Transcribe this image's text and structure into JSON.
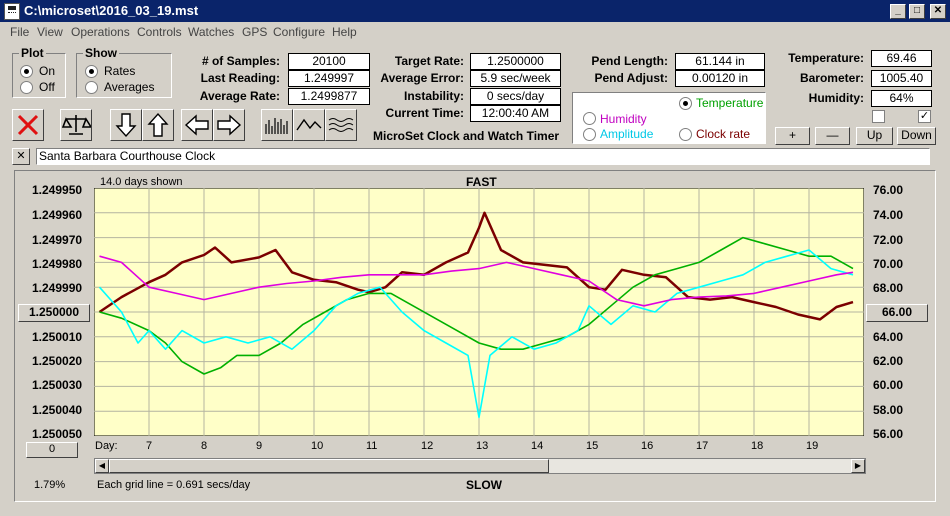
{
  "window": {
    "title": "C:\\microset\\2016_03_19.mst",
    "min": "_",
    "max": "□",
    "close": "✕"
  },
  "menu": [
    "File",
    "View",
    "Operations",
    "Controls",
    "Watches",
    "GPS",
    "Configure",
    "Help"
  ],
  "plot": {
    "legend": "Plot",
    "on": "On",
    "off": "Off",
    "selected": "On"
  },
  "show": {
    "legend": "Show",
    "rates": "Rates",
    "averages": "Averages",
    "selected": "Rates"
  },
  "stats": {
    "samples_label": "# of Samples:",
    "samples": "20100",
    "last_label": "Last Reading:",
    "last": "1.249997",
    "avg_label": "Average Rate:",
    "avg": "1.2499877"
  },
  "rates": {
    "target_label": "Target Rate:",
    "target": "1.2500000",
    "err_label": "Average Error:",
    "err": "5.9 sec/week",
    "instab_label": "Instability:",
    "instab": "0 secs/day",
    "time_label": "Current Time:",
    "time": "12:00:40 AM"
  },
  "app_name": "MicroSet Clock and Watch Timer",
  "pend": {
    "length_label": "Pend Length:",
    "length": "61.144 in",
    "adjust_label": "Pend Adjust:",
    "adjust": "0.00120 in"
  },
  "sensor_options": {
    "temperature": "Temperature",
    "humidity": "Humidity",
    "amplitude": "Amplitude",
    "clock_rate": "Clock rate",
    "selected": "Temperature"
  },
  "env": {
    "temp_label": "Temperature:",
    "temp": "69.46",
    "baro_label": "Barometer:",
    "baro": "1005.40",
    "hum_label": "Humidity:",
    "hum": "64%"
  },
  "scale_buttons": {
    "plus": "+",
    "minus": "—",
    "up": "Up",
    "down": "Down"
  },
  "clock_name": "Santa Barbara Courthouse Clock",
  "close_x": "✕",
  "chart_top": {
    "days_shown": "14.0 days shown",
    "fast": "FAST"
  },
  "chart_bottom": {
    "slow": "SLOW",
    "grid": "Each grid line = 0.691 secs/day",
    "percent": "1.79%",
    "left_btn": "0",
    "day_label": "Day:"
  },
  "left_mid_value": "1.250000",
  "right_mid_value": "66.00",
  "colors": {
    "plot_bg": "#ffffc8",
    "rate": "#7b0000",
    "temperature": "#00b000",
    "amplitude": "#00ffff",
    "humidity": "#e000e0"
  },
  "chart_data": {
    "type": "line",
    "x_label": "Day:",
    "x_ticks": [
      "7",
      "8",
      "9",
      "10",
      "11",
      "12",
      "13",
      "14",
      "15",
      "16",
      "17",
      "18",
      "19"
    ],
    "xlim": [
      6,
      20
    ],
    "y_left_ticks": [
      "1.249950",
      "1.249960",
      "1.249970",
      "1.249980",
      "1.249990",
      "1.250000",
      "1.250010",
      "1.250020",
      "1.250030",
      "1.250040",
      "1.250050"
    ],
    "ylim_left": [
      1.24995,
      1.25005
    ],
    "y_left_inverted": true,
    "y_right_ticks": [
      "76.00",
      "74.00",
      "72.00",
      "70.00",
      "68.00",
      "66.00",
      "64.00",
      "62.00",
      "60.00",
      "58.00",
      "56.00"
    ],
    "ylim_right": [
      56,
      76
    ],
    "series": [
      {
        "name": "Rate",
        "color": "#7b0000",
        "x": [
          6.1,
          6.5,
          7.0,
          7.3,
          7.6,
          8.0,
          8.2,
          8.5,
          9.0,
          9.3,
          9.6,
          10.0,
          10.4,
          10.8,
          11.0,
          11.3,
          11.6,
          12.0,
          12.4,
          12.8,
          13.0,
          13.1,
          13.4,
          13.8,
          14.2,
          14.6,
          15.0,
          15.3,
          15.6,
          16.0,
          16.4,
          16.8,
          17.2,
          17.6,
          18.0,
          18.4,
          18.8,
          19.2,
          19.5,
          19.8
        ],
        "y": [
          1.25,
          1.249994,
          1.249988,
          1.249985,
          1.24998,
          1.249977,
          1.249974,
          1.24998,
          1.249978,
          1.249975,
          1.249984,
          1.249987,
          1.249988,
          1.249991,
          1.249992,
          1.24999,
          1.249984,
          1.249985,
          1.24998,
          1.249976,
          1.249966,
          1.24996,
          1.249975,
          1.24998,
          1.249981,
          1.249982,
          1.24999,
          1.249991,
          1.249983,
          1.249985,
          1.249986,
          1.249994,
          1.249995,
          1.249994,
          1.249996,
          1.249998,
          1.250001,
          1.250003,
          1.249998,
          1.249996
        ]
      },
      {
        "name": "Temperature",
        "color": "#00b000",
        "x": [
          6.1,
          6.5,
          7.0,
          7.3,
          7.6,
          8.0,
          8.3,
          8.6,
          9.0,
          9.4,
          9.8,
          10.2,
          10.6,
          11.0,
          11.4,
          11.8,
          12.2,
          12.6,
          13.0,
          13.4,
          13.8,
          14.2,
          14.6,
          15.0,
          15.4,
          15.8,
          16.2,
          16.6,
          17.0,
          17.4,
          17.8,
          18.2,
          18.6,
          19.0,
          19.4,
          19.8
        ],
        "y": [
          66.0,
          65.5,
          64.5,
          63.5,
          62.0,
          61.0,
          61.5,
          62.5,
          62.5,
          63.5,
          65.0,
          66.0,
          67.0,
          67.5,
          67.5,
          66.5,
          65.5,
          64.5,
          63.5,
          63.0,
          63.0,
          63.5,
          64.0,
          65.0,
          66.5,
          68.0,
          69.0,
          69.5,
          70.0,
          71.0,
          72.0,
          71.5,
          71.0,
          70.5,
          70.5,
          69.5
        ]
      },
      {
        "name": "Amplitude",
        "color": "#00ffff",
        "x": [
          6.1,
          6.5,
          6.8,
          7.0,
          7.3,
          7.6,
          8.0,
          8.4,
          8.8,
          9.2,
          9.6,
          10.0,
          10.4,
          10.8,
          11.2,
          11.6,
          12.0,
          12.4,
          12.8,
          13.0,
          13.2,
          13.6,
          14.0,
          14.4,
          14.8,
          15.0,
          15.4,
          15.8,
          16.2,
          16.6,
          17.0,
          17.4,
          17.8,
          18.2,
          18.6,
          19.0,
          19.4,
          19.8
        ],
        "y": [
          68.0,
          66.0,
          63.5,
          64.5,
          63.0,
          64.5,
          63.5,
          64.0,
          63.5,
          64.0,
          63.0,
          64.5,
          66.5,
          67.5,
          68.0,
          66.0,
          64.5,
          63.5,
          62.5,
          57.5,
          62.5,
          64.0,
          63.0,
          63.5,
          64.5,
          66.5,
          65.0,
          66.5,
          66.0,
          67.5,
          68.0,
          68.5,
          69.0,
          70.0,
          70.5,
          71.0,
          69.5,
          69.0
        ]
      },
      {
        "name": "Humidity",
        "color": "#e000e0",
        "x": [
          6.1,
          6.5,
          7.0,
          7.5,
          8.0,
          8.5,
          9.0,
          9.5,
          10.0,
          10.5,
          11.0,
          11.5,
          12.0,
          12.5,
          13.0,
          13.5,
          14.0,
          14.5,
          15.0,
          15.5,
          16.0,
          16.5,
          17.0,
          17.5,
          18.0,
          18.5,
          19.0,
          19.5,
          19.8
        ],
        "y": [
          70.5,
          70.0,
          68.0,
          67.5,
          67.0,
          67.5,
          68.0,
          68.3,
          68.5,
          68.8,
          69.0,
          69.0,
          69.0,
          69.3,
          69.5,
          70.0,
          69.5,
          69.0,
          68.5,
          67.0,
          66.5,
          67.0,
          67.2,
          67.3,
          67.5,
          68.0,
          68.5,
          69.0,
          69.2
        ]
      }
    ]
  }
}
